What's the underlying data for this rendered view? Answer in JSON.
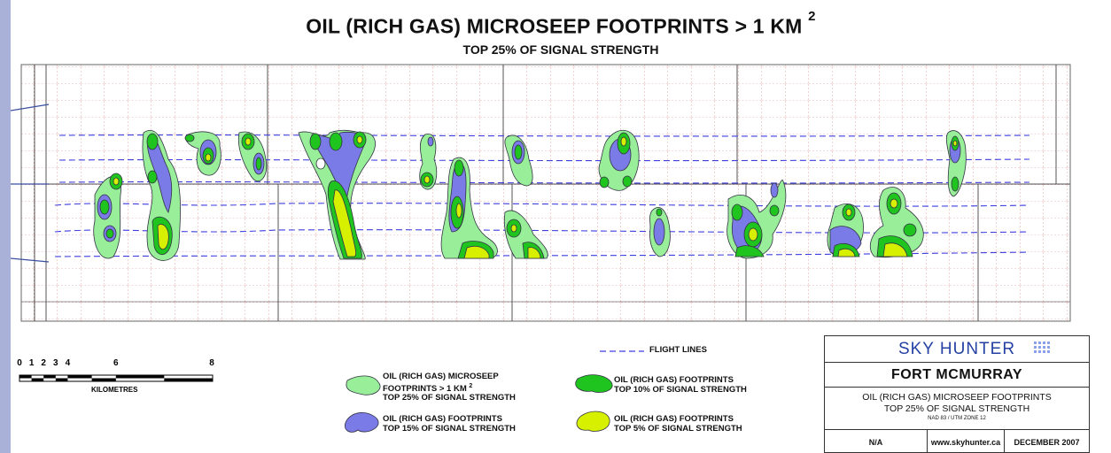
{
  "title": {
    "main": "OIL (RICH GAS) MICROSEEP FOOTPRINTS > 1 KM",
    "main_sup": "2",
    "sub": "TOP 25% OF SIGNAL STRENGTH"
  },
  "colors": {
    "footprint_25": "#99ee99",
    "footprint_15": "#7b7be8",
    "footprint_10": "#1fc41f",
    "footprint_5": "#d7f000",
    "flight_line": "#3d3de0",
    "grid_dash": "#d57070",
    "leader_line": "#3a4fa0"
  },
  "scale_bar": {
    "numbers": [
      "0",
      "1",
      "2",
      "3",
      "4",
      "6",
      "8"
    ],
    "unit": "KILOMETRES"
  },
  "legend": {
    "flight_lines": "FLIGHT LINES",
    "top25_line1": "OIL (RICH GAS) MICROSEEP",
    "top25_line2": "FOOTPRINTS > 1 KM",
    "top25_sup": "2",
    "top25_line3": "TOP 25% OF SIGNAL STRENGTH",
    "top15_line1": "OIL (RICH GAS) FOOTPRINTS",
    "top15_line2": "TOP 15% OF SIGNAL STRENGTH",
    "top10_line1": "OIL (RICH GAS) FOOTPRINTS",
    "top10_line2": "TOP 10% OF SIGNAL STRENGTH",
    "top5_line1": "OIL (RICH GAS) FOOTPRINTS",
    "top5_line2": "TOP 5% OF SIGNAL STRENGTH"
  },
  "title_block": {
    "brand": "SKY HUNTER",
    "place": "FORT MCMURRAY",
    "desc_line1": "OIL (RICH GAS) MICROSEEP FOOTPRINTS",
    "desc_line2": "TOP 25% OF SIGNAL STRENGTH",
    "projection": "NAD 83 / UTM ZONE 12",
    "scale": "N/A",
    "website": "www.skyhunter.ca",
    "date": "DECEMBER 2007"
  }
}
